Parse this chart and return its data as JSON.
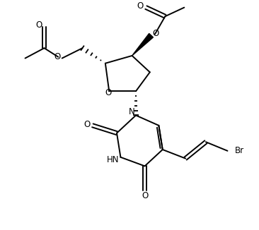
{
  "bg_color": "#ffffff",
  "line_color": "#000000",
  "lw": 1.4,
  "figsize": [
    3.66,
    3.26
  ],
  "dpi": 100,
  "xlim": [
    0,
    9
  ],
  "ylim": [
    0,
    9
  ]
}
